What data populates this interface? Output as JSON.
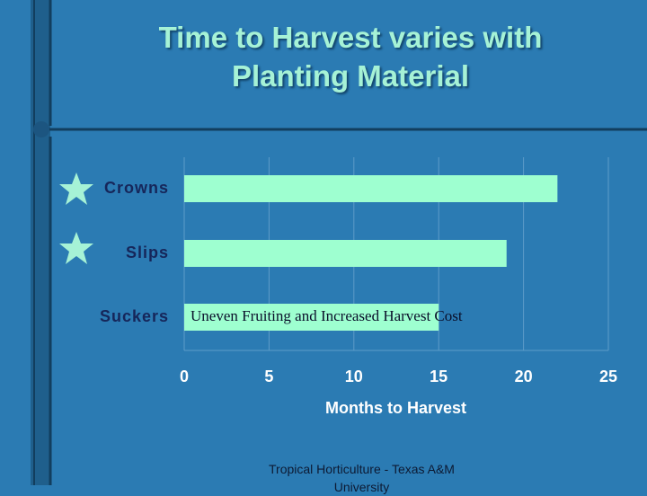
{
  "chart_data": {
    "type": "bar",
    "orientation": "horizontal",
    "title": "Time to Harvest varies with Planting Material",
    "categories": [
      "Crowns",
      "Slips",
      "Suckers"
    ],
    "values": [
      22,
      19,
      15
    ],
    "color": "#9effd0",
    "xlim": [
      0,
      25
    ],
    "xticks": [
      0,
      5,
      10,
      15,
      20,
      25
    ],
    "xlabel": "Months to Harvest",
    "grid": true,
    "annotation": "Uneven Fruiting  and Increased Harvest Cost",
    "footer": "Tropical Horticulture - Texas A&M University"
  }
}
